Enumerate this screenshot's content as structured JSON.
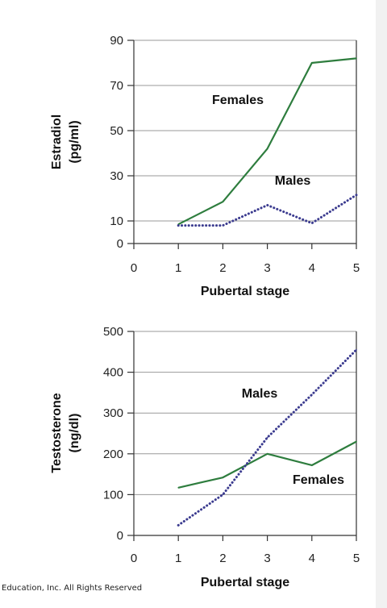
{
  "footer": {
    "copyright": "Education, Inc. All Rights Reserved"
  },
  "colors": {
    "females": "#2e7d3e",
    "males": "#3b3b8f",
    "grid": "#999999"
  },
  "chart_data": [
    {
      "type": "line",
      "xlabel": "Pubertal stage",
      "ylabel_line1": "Estradiol",
      "ylabel_line2": "(pg/ml)",
      "xlim": [
        0,
        5
      ],
      "ylim": [
        0,
        90
      ],
      "xticks": [
        0,
        1,
        2,
        3,
        4,
        5
      ],
      "yticks": [
        0,
        10,
        30,
        50,
        70,
        90
      ],
      "grid": true,
      "series": [
        {
          "name": "Females",
          "style": "solid",
          "x": [
            1,
            2,
            3,
            4,
            5
          ],
          "y": [
            8.5,
            18.5,
            42,
            80,
            82
          ]
        },
        {
          "name": "Males",
          "style": "dotted",
          "x": [
            1,
            2,
            3,
            4,
            5
          ],
          "y": [
            8,
            8,
            17,
            9,
            21.5
          ]
        }
      ]
    },
    {
      "type": "line",
      "xlabel": "Pubertal stage",
      "ylabel_line1": "Testosterone",
      "ylabel_line2": "(ng/dl)",
      "xlim": [
        0,
        5
      ],
      "ylim": [
        0,
        500
      ],
      "xticks": [
        0,
        1,
        2,
        3,
        4,
        5
      ],
      "yticks": [
        0,
        100,
        200,
        300,
        400,
        500
      ],
      "grid": true,
      "series": [
        {
          "name": "Females",
          "style": "solid",
          "x": [
            1,
            2,
            3,
            4,
            5
          ],
          "y": [
            117,
            142,
            200,
            172,
            230
          ]
        },
        {
          "name": "Males",
          "style": "dotted",
          "x": [
            1,
            2,
            3,
            4,
            5
          ],
          "y": [
            25,
            100,
            240,
            345,
            455
          ]
        }
      ]
    }
  ]
}
